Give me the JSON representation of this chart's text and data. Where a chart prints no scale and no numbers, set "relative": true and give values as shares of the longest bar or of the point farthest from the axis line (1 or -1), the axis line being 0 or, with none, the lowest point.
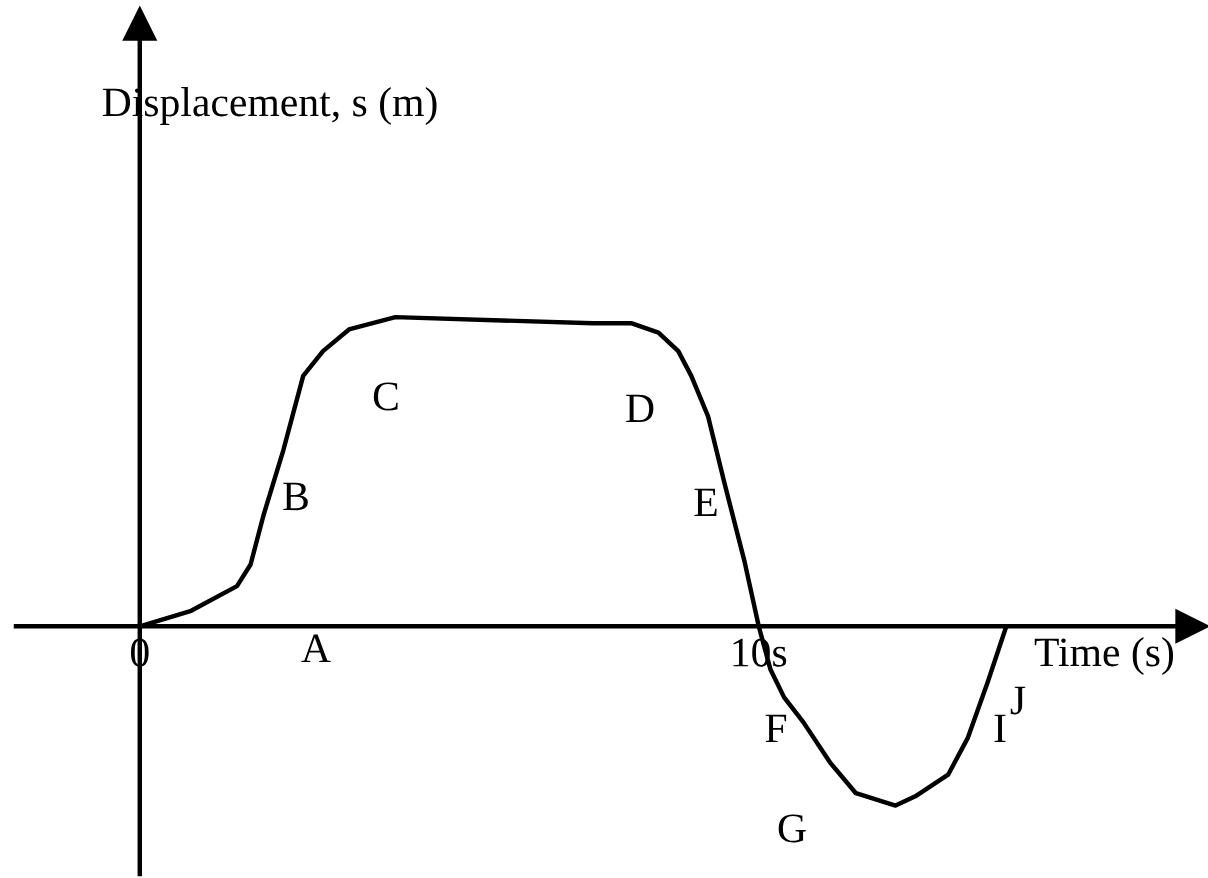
{
  "chart_data": {
    "type": "line",
    "xlabel": "Time (s)",
    "ylabel": "Displacement, s (m)",
    "relative": true,
    "tick_labels": "x",
    "xlim": [
      -2,
      17
    ],
    "xticks": [
      0,
      {
        "value": 10,
        "label": "10s"
      }
    ],
    "x": [
      0,
      0.83,
      1.57,
      1.79,
      2.0,
      2.32,
      2.64,
      2.96,
      3.38,
      4.13,
      7.32,
      7.95,
      8.38,
      8.7,
      8.91,
      9.18,
      9.45,
      9.77,
      10,
      10.19,
      10.41,
      10.72,
      11.15,
      11.57,
      12.21,
      12.53,
      13.06,
      13.38,
      13.7,
      14.0
    ],
    "series": [
      {
        "color": "#000000",
        "values": [
          0,
          0.05,
          0.13,
          0.2,
          0.36,
          0.57,
          0.81,
          0.89,
          0.96,
          1.0,
          0.98,
          0.98,
          0.95,
          0.89,
          0.81,
          0.68,
          0.46,
          0.21,
          0,
          -0.14,
          -0.23,
          -0.31,
          -0.44,
          -0.54,
          -0.58,
          -0.55,
          -0.48,
          -0.36,
          -0.18,
          0
        ]
      }
    ],
    "annotations": [
      "A",
      "B",
      "C",
      "D",
      "E",
      "F",
      "G",
      "I",
      "J"
    ]
  }
}
